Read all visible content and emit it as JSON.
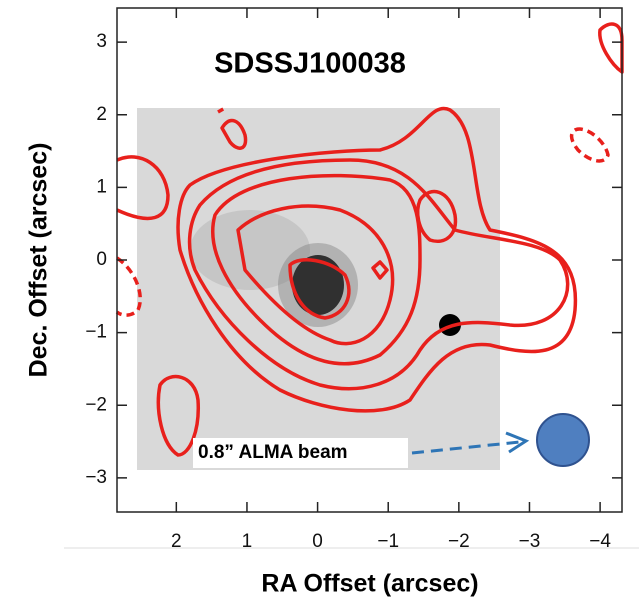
{
  "chart_data": {
    "type": "image",
    "title": "SDSSJ100038",
    "x_label": "RA Offset (arcsec)",
    "y_label": "Dec. Offset (arcsec)",
    "annotation": "0.8” ALMA beam",
    "xlim": [
      2.84,
      -4.31
    ],
    "ylim": [
      -3.47,
      3.47
    ],
    "xticks": [
      2,
      1,
      0,
      {
        "value": -1,
        "label": "−1"
      },
      {
        "value": -2,
        "label": "−2"
      },
      {
        "value": -3,
        "label": "−3"
      },
      {
        "value": -4,
        "label": "−4"
      }
    ],
    "yticks": [
      {
        "value": -3,
        "label": "−3"
      },
      {
        "value": -2,
        "label": "−2"
      },
      {
        "value": -1,
        "label": "−1"
      },
      0,
      1,
      2,
      3
    ],
    "contour_color": "#e8201c"
  }
}
